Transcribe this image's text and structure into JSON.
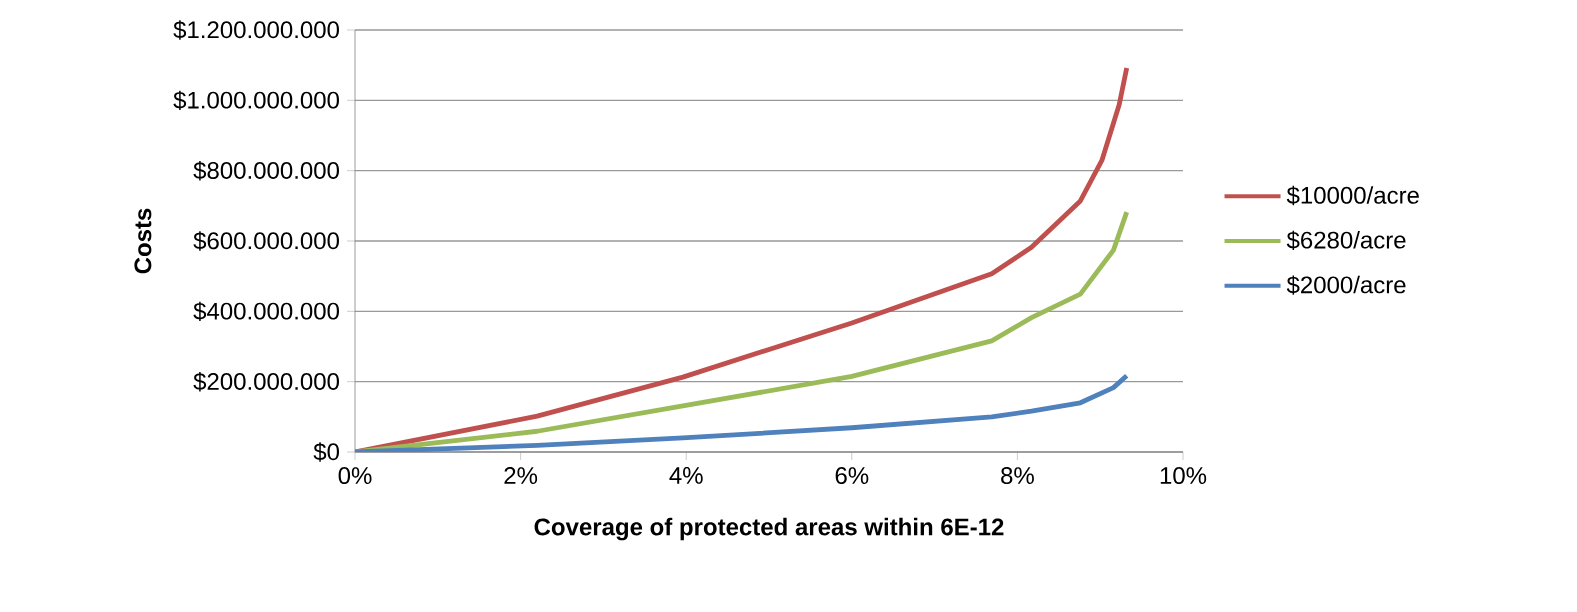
{
  "chart_data": {
    "type": "line",
    "xlabel": "Coverage of protected areas within 6E-12",
    "ylabel": "Costs",
    "xlim": [
      0,
      10
    ],
    "xticks": [
      {
        "value": 0,
        "label": "0%"
      },
      {
        "value": 2,
        "label": "2%"
      },
      {
        "value": 4,
        "label": "4%"
      },
      {
        "value": 6,
        "label": "6%"
      },
      {
        "value": 8,
        "label": "8%"
      },
      {
        "value": 10,
        "label": "10%"
      }
    ],
    "ylim": [
      0,
      1200000000
    ],
    "yticks": [
      {
        "value": 0,
        "label": "$0"
      },
      {
        "value": 200000000,
        "label": "$200.000.000"
      },
      {
        "value": 400000000,
        "label": "$400.000.000"
      },
      {
        "value": 600000000,
        "label": "$600.000.000"
      },
      {
        "value": 800000000,
        "label": "$800.000.000"
      },
      {
        "value": 1000000000,
        "label": "$1.000.000.000"
      },
      {
        "value": 1200000000,
        "label": "$1.200.000.000"
      }
    ],
    "grid": "y",
    "legend": "right",
    "x": [
      0,
      2.2,
      3.96,
      6.0,
      7.69,
      8.17,
      8.76,
      9.02,
      9.16,
      9.23,
      9.32
    ],
    "series": [
      {
        "name": "$10000/acre",
        "color": "#c0504d",
        "values": [
          0,
          102000000,
          213000000,
          367000000,
          507000000,
          582000000,
          714000000,
          829000000,
          null,
          988000000,
          1092000000
        ]
      },
      {
        "name": "$6280/acre",
        "color": "#9bbb59",
        "values": [
          0,
          59000000,
          131000000,
          215000000,
          316000000,
          382000000,
          449000000,
          null,
          574000000,
          null,
          682000000
        ]
      },
      {
        "name": "$2000/acre",
        "color": "#4f81bd",
        "values": [
          0,
          19000000,
          40000000,
          69000000,
          100000000,
          116000000,
          140000000,
          null,
          183000000,
          null,
          217000000
        ]
      }
    ]
  }
}
